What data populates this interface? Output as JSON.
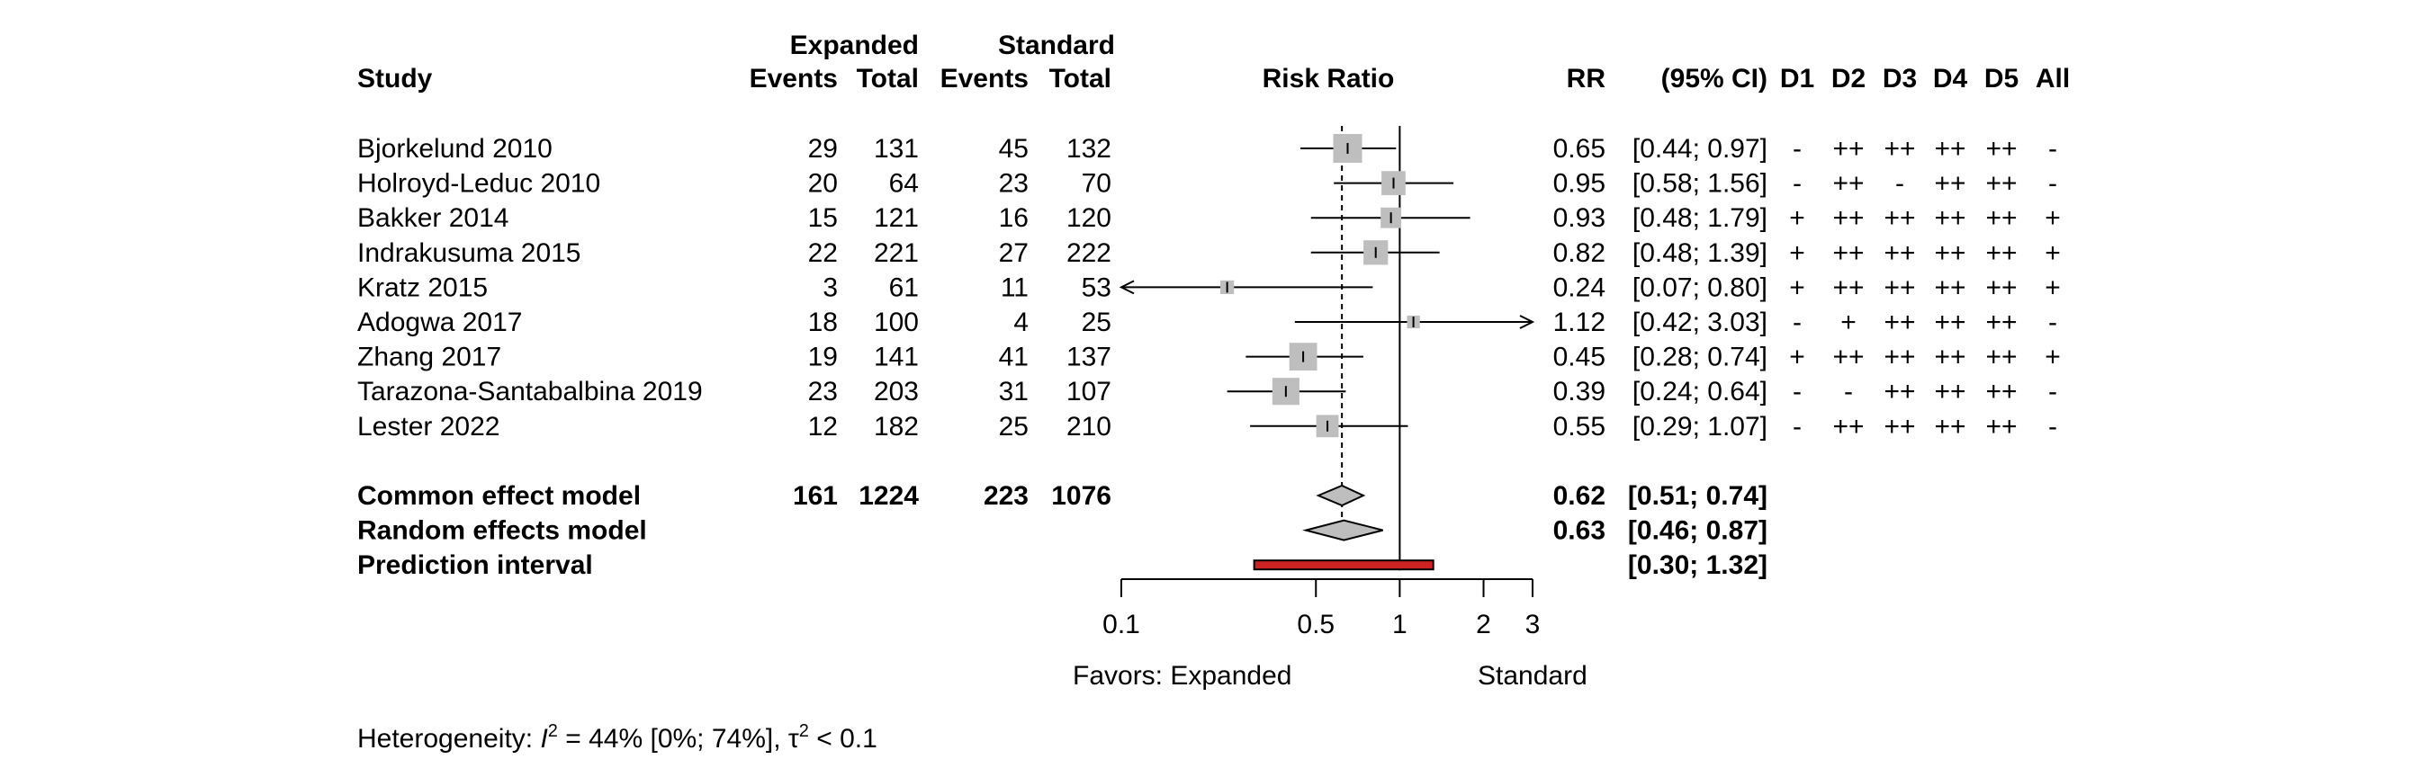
{
  "chart_data": {
    "type": "forest",
    "scale": "log",
    "x_axis": {
      "ticks": [
        0.1,
        0.5,
        1,
        2,
        3
      ],
      "tick_labels": [
        "0.1",
        "0.5",
        "1",
        "2",
        "3"
      ],
      "xlim": [
        0.1,
        3
      ],
      "reference_line": 1,
      "pooled_line": 0.62,
      "label_left": "Favors: Expanded",
      "label_right": "Standard"
    },
    "headers": {
      "group1": "Expanded",
      "group2": "Standard",
      "study": "Study",
      "events1": "Events",
      "total1": "Total",
      "events2": "Events",
      "total2": "Total",
      "effect": "Risk Ratio",
      "rr": "RR",
      "ci": "(95% CI)",
      "d1": "D1",
      "d2": "D2",
      "d3": "D3",
      "d4": "D4",
      "d5": "D5",
      "all": "All"
    },
    "studies": [
      {
        "study": "Bjorkelund 2010",
        "events1": "29",
        "total1": "131",
        "events2": "45",
        "total2": "132",
        "rr": 0.65,
        "lo": 0.44,
        "hi": 0.97,
        "rr_text": "0.65",
        "ci_text": "[0.44; 0.97]",
        "weight": 1.0,
        "d1": "-",
        "d2": "++",
        "d3": "++",
        "d4": "++",
        "d5": "++",
        "all": "-"
      },
      {
        "study": "Holroyd-Leduc 2010",
        "events1": "20",
        "total1": "64",
        "events2": "23",
        "total2": "70",
        "rr": 0.95,
        "lo": 0.58,
        "hi": 1.56,
        "rr_text": "0.95",
        "ci_text": "[0.58; 1.56]",
        "weight": 0.78,
        "d1": "-",
        "d2": "++",
        "d3": "-",
        "d4": "++",
        "d5": "++",
        "all": "-"
      },
      {
        "study": "Bakker 2014",
        "events1": "15",
        "total1": "121",
        "events2": "16",
        "total2": "120",
        "rr": 0.93,
        "lo": 0.48,
        "hi": 1.79,
        "rr_text": "0.93",
        "ci_text": "[0.48; 1.79]",
        "weight": 0.62,
        "d1": "+",
        "d2": "++",
        "d3": "++",
        "d4": "++",
        "d5": "++",
        "all": "+"
      },
      {
        "study": "Indrakusuma 2015",
        "events1": "22",
        "total1": "221",
        "events2": "27",
        "total2": "222",
        "rr": 0.82,
        "lo": 0.48,
        "hi": 1.39,
        "rr_text": "0.82",
        "ci_text": "[0.48; 1.39]",
        "weight": 0.8,
        "d1": "+",
        "d2": "++",
        "d3": "++",
        "d4": "++",
        "d5": "++",
        "all": "+"
      },
      {
        "study": "Kratz 2015",
        "events1": "3",
        "total1": "61",
        "events2": "11",
        "total2": "53",
        "rr": 0.24,
        "lo": 0.07,
        "hi": 0.8,
        "rr_text": "0.24",
        "ci_text": "[0.07; 0.80]",
        "weight": 0.3,
        "d1": "+",
        "d2": "++",
        "d3": "++",
        "d4": "++",
        "d5": "++",
        "all": "+"
      },
      {
        "study": "Adogwa 2017",
        "events1": "18",
        "total1": "100",
        "events2": "4",
        "total2": "25",
        "rr": 1.12,
        "lo": 0.42,
        "hi": 3.03,
        "rr_text": "1.12",
        "ci_text": "[0.42; 3.03]",
        "weight": 0.26,
        "d1": "-",
        "d2": "+",
        "d3": "++",
        "d4": "++",
        "d5": "++",
        "all": "-"
      },
      {
        "study": "Zhang 2017",
        "events1": "19",
        "total1": "141",
        "events2": "41",
        "total2": "137",
        "rr": 0.45,
        "lo": 0.28,
        "hi": 0.74,
        "rr_text": "0.45",
        "ci_text": "[0.28; 0.74]",
        "weight": 0.95,
        "d1": "+",
        "d2": "++",
        "d3": "++",
        "d4": "++",
        "d5": "++",
        "all": "+"
      },
      {
        "study": "Tarazona-Santabalbina 2019",
        "events1": "23",
        "total1": "203",
        "events2": "31",
        "total2": "107",
        "rr": 0.39,
        "lo": 0.24,
        "hi": 0.64,
        "rr_text": "0.39",
        "ci_text": "[0.24; 0.64]",
        "weight": 0.92,
        "d1": "-",
        "d2": "-",
        "d3": "++",
        "d4": "++",
        "d5": "++",
        "all": "-"
      },
      {
        "study": "Lester 2022",
        "events1": "12",
        "total1": "182",
        "events2": "25",
        "total2": "210",
        "rr": 0.55,
        "lo": 0.29,
        "hi": 1.07,
        "rr_text": "0.55",
        "ci_text": "[0.29; 1.07]",
        "weight": 0.7,
        "d1": "-",
        "d2": "++",
        "d3": "++",
        "d4": "++",
        "d5": "++",
        "all": "-"
      }
    ],
    "common": {
      "label": "Common effect model",
      "events1": "161",
      "total1": "1224",
      "events2": "223",
      "total2": "1076",
      "rr": 0.62,
      "lo": 0.51,
      "hi": 0.74,
      "rr_text": "0.62",
      "ci_text": "[0.51; 0.74]"
    },
    "random": {
      "label": "Random effects model",
      "rr": 0.63,
      "lo": 0.46,
      "hi": 0.87,
      "rr_text": "0.63",
      "ci_text": "[0.46; 0.87]"
    },
    "prediction": {
      "label": "Prediction interval",
      "lo": 0.3,
      "hi": 1.32,
      "ci_text": "[0.30; 1.32]",
      "color": "#cc2222"
    },
    "heterogeneity": {
      "prefix": "Heterogeneity: ",
      "i2_symbol": "I",
      "i2_text": " = 44% [0%; 74%], ",
      "tau_symbol": "τ",
      "tau_text": " < 0.1"
    },
    "colors": {
      "square": "#bebebe",
      "diamond": "#bebebe",
      "line": "#000000",
      "prediction": "#cc2222"
    }
  }
}
